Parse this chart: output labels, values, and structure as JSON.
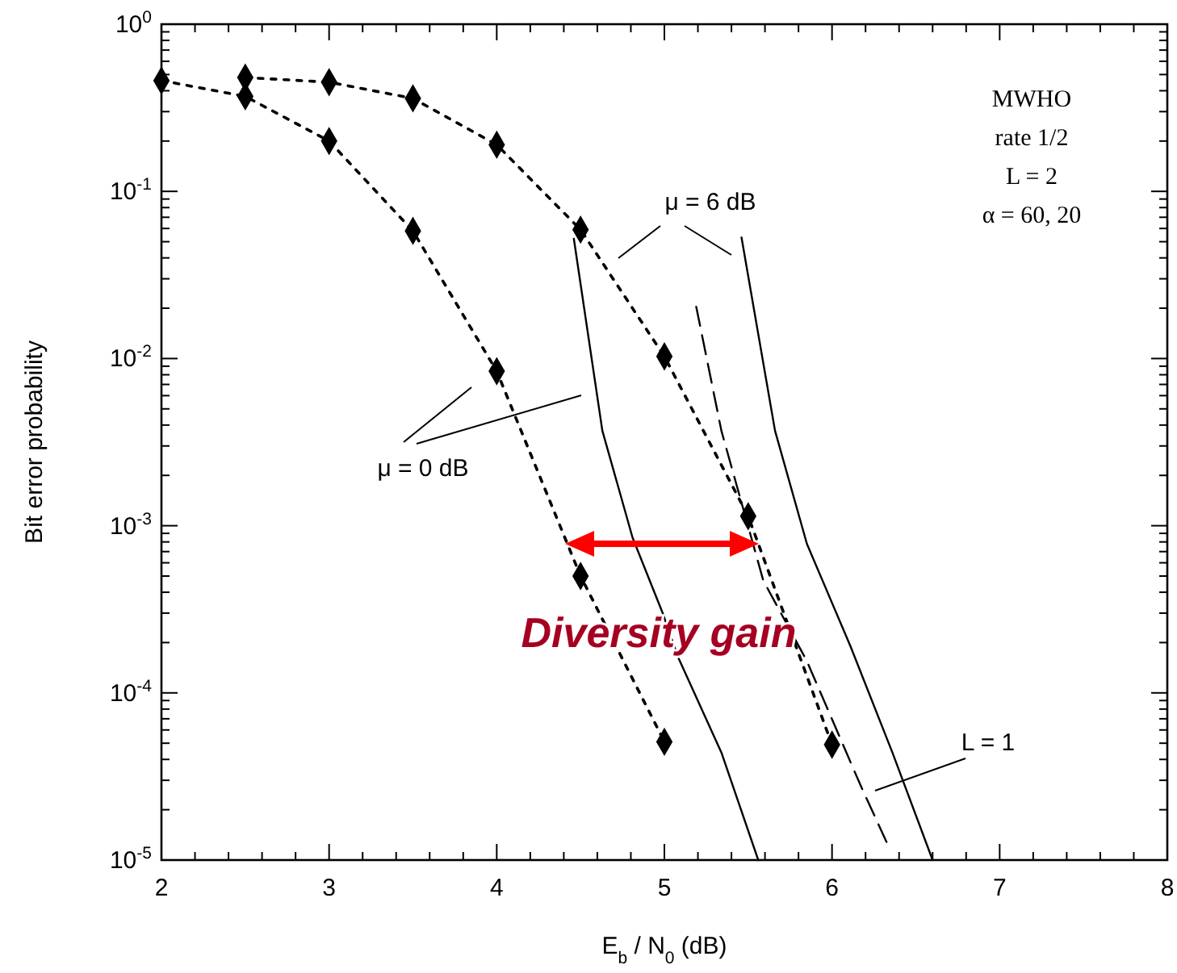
{
  "chart_data": {
    "type": "line",
    "xlabel": "E$_{b}$ / N$_{0}$ (dB)",
    "ylabel": "Bit error probability",
    "log": "y",
    "xlim": [
      2,
      8
    ],
    "ylim": [
      1e-05,
      1
    ],
    "xticks": [
      2,
      {
        "value": 2.2,
        "label": null
      },
      {
        "value": 2.4,
        "label": null
      },
      {
        "value": 2.6,
        "label": null
      },
      {
        "value": 2.8,
        "label": null
      },
      3,
      {
        "value": 3.2,
        "label": null
      },
      {
        "value": 3.4,
        "label": null
      },
      {
        "value": 3.6,
        "label": null
      },
      {
        "value": 3.8,
        "label": null
      },
      4,
      {
        "value": 4.2,
        "label": null
      },
      {
        "value": 4.4,
        "label": null
      },
      {
        "value": 4.6,
        "label": null
      },
      {
        "value": 4.8,
        "label": null
      },
      5,
      {
        "value": 5.2,
        "label": null
      },
      {
        "value": 5.4,
        "label": null
      },
      {
        "value": 5.6,
        "label": null
      },
      {
        "value": 5.8,
        "label": null
      },
      6,
      {
        "value": 6.2,
        "label": null
      },
      {
        "value": 6.4,
        "label": null
      },
      {
        "value": 6.6,
        "label": null
      },
      {
        "value": 6.8,
        "label": null
      },
      7,
      {
        "value": 7.2,
        "label": null
      },
      {
        "value": 7.4,
        "label": null
      },
      {
        "value": 7.6,
        "label": null
      },
      {
        "value": 7.8,
        "label": null
      },
      8
    ],
    "yticks": [
      {
        "value": 1e-05,
        "label": "10$^{-5}$"
      },
      {
        "value": 2e-05,
        "label": null
      },
      {
        "value": 3e-05,
        "label": null
      },
      {
        "value": 4e-05,
        "label": null
      },
      {
        "value": 5e-05,
        "label": null
      },
      {
        "value": 6e-05,
        "label": null
      },
      {
        "value": 7e-05,
        "label": null
      },
      {
        "value": 8e-05,
        "label": null
      },
      {
        "value": 9e-05,
        "label": null
      },
      {
        "value": 0.0001,
        "label": "10$^{-4}$"
      },
      {
        "value": 0.0002,
        "label": null
      },
      {
        "value": 0.0003,
        "label": null
      },
      {
        "value": 0.0004,
        "label": null
      },
      {
        "value": 0.0005,
        "label": null
      },
      {
        "value": 0.0006,
        "label": null
      },
      {
        "value": 0.0007,
        "label": null
      },
      {
        "value": 0.0008,
        "label": null
      },
      {
        "value": 0.0009,
        "label": null
      },
      {
        "value": 0.001,
        "label": "10$^{-3}$"
      },
      {
        "value": 0.002,
        "label": null
      },
      {
        "value": 0.003,
        "label": null
      },
      {
        "value": 0.004,
        "label": null
      },
      {
        "value": 0.005,
        "label": null
      },
      {
        "value": 0.006,
        "label": null
      },
      {
        "value": 0.007,
        "label": null
      },
      {
        "value": 0.008,
        "label": null
      },
      {
        "value": 0.009,
        "label": null
      },
      {
        "value": 0.01,
        "label": "10$^{-2}$"
      },
      {
        "value": 0.02,
        "label": null
      },
      {
        "value": 0.03,
        "label": null
      },
      {
        "value": 0.04,
        "label": null
      },
      {
        "value": 0.05,
        "label": null
      },
      {
        "value": 0.06,
        "label": null
      },
      {
        "value": 0.07,
        "label": null
      },
      {
        "value": 0.08,
        "label": null
      },
      {
        "value": 0.09,
        "label": null
      },
      {
        "value": 0.1,
        "label": "10$^{-1}$"
      },
      {
        "value": 0.2,
        "label": null
      },
      {
        "value": 0.3,
        "label": null
      },
      {
        "value": 0.4,
        "label": null
      },
      {
        "value": 0.5,
        "label": null
      },
      {
        "value": 0.6,
        "label": null
      },
      {
        "value": 0.7,
        "label": null
      },
      {
        "value": 0.8,
        "label": null
      },
      {
        "value": 0.9,
        "label": null
      },
      {
        "value": 1,
        "label": "10$^{0}$"
      }
    ],
    "series": [
      {
        "color": "#000000",
        "line_style": "dotted",
        "marker": "diamond",
        "x": [
          2,
          2.5,
          3,
          3.5,
          4,
          4.5,
          5
        ],
        "values": [
          0.46,
          0.37,
          0.2,
          0.058,
          0.0084,
          0.0005,
          5.1e-05
        ]
      },
      {
        "color": "#000000",
        "line_style": "dotted",
        "marker": "diamond",
        "x": [
          2.5,
          3,
          3.5,
          4,
          4.5,
          5,
          5.5,
          6
        ],
        "values": [
          0.48,
          0.45,
          0.36,
          0.19,
          0.059,
          0.0103,
          0.00114,
          4.9e-05
        ]
      },
      {
        "color": "#000000",
        "line_style": "solid",
        "marker": "none",
        "x": [
          4.46,
          4.63,
          4.81,
          4.99,
          5.08,
          5.34,
          5.56
        ],
        "values": [
          0.052,
          0.0037,
          0.00085,
          0.0003,
          0.000165,
          4.4e-05,
          1e-05
        ]
      },
      {
        "color": "#000000",
        "line_style": "solid",
        "marker": "none",
        "x": [
          5.46,
          5.66,
          5.85,
          6.11,
          6.36,
          6.6
        ],
        "values": [
          0.053,
          0.0037,
          0.00078,
          0.00019,
          4.4e-05,
          1e-05
        ]
      },
      {
        "color": "#000000",
        "line_style": "dashed",
        "marker": "none",
        "x": [
          5.19,
          5.34,
          5.59,
          5.85,
          6.17,
          6.33
        ],
        "values": [
          0.0204,
          0.0037,
          0.00047,
          0.000155,
          2.8e-05,
          1.25e-05
        ]
      }
    ],
    "annotations": [
      "MWHO",
      "rate 1/2",
      "L = 2",
      "α = 60, 20",
      "μ = 6 dB",
      "μ = 0 dB",
      "L = 1",
      "Diversity gain"
    ]
  }
}
